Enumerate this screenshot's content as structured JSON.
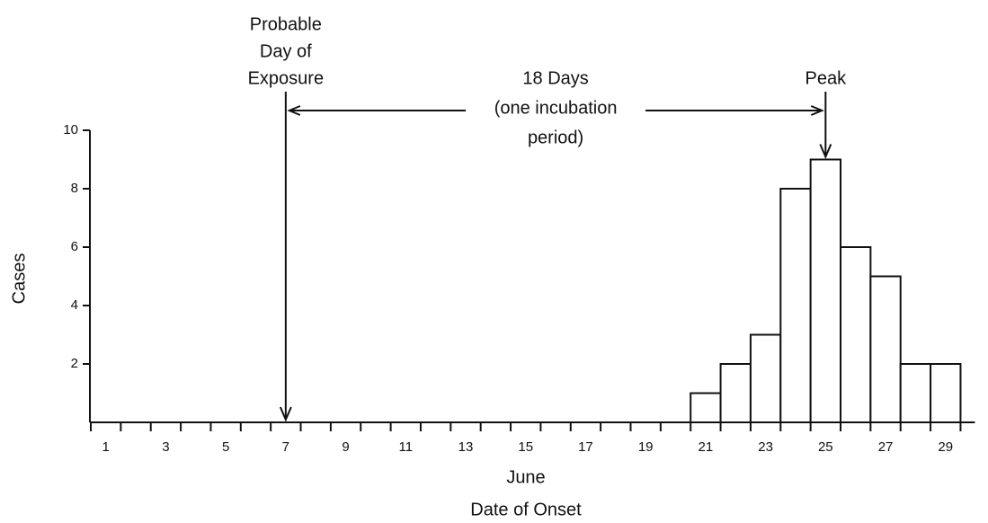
{
  "chart_data": {
    "type": "bar",
    "categories": [
      "1",
      null,
      "3",
      null,
      "5",
      null,
      "7",
      null,
      "9",
      null,
      "11",
      null,
      "13",
      null,
      "15",
      null,
      "17",
      null,
      "19",
      null,
      "21",
      null,
      "23",
      null,
      "25",
      null,
      "27",
      null,
      "29"
    ],
    "values": [
      0,
      0,
      0,
      0,
      0,
      0,
      0,
      0,
      0,
      0,
      0,
      0,
      0,
      0,
      0,
      0,
      0,
      0,
      0,
      0,
      1,
      2,
      3,
      8,
      9,
      6,
      5,
      2,
      2
    ],
    "color": "#ffffff",
    "ylim": [
      0,
      10
    ],
    "yticks": [
      2,
      4,
      6,
      8,
      10
    ],
    "y_label": "Cases",
    "x_label": [
      "June",
      "Date of Onset"
    ],
    "annotations": [
      {
        "lines": [
          "Probable",
          "Day of",
          "Exposure"
        ],
        "x": 7
      },
      {
        "lines": [
          "Peak"
        ],
        "x": 25
      }
    ],
    "interval": {
      "lines": [
        "18 Days",
        "(one incubation",
        "period)"
      ],
      "from": 7,
      "to": 25
    }
  }
}
